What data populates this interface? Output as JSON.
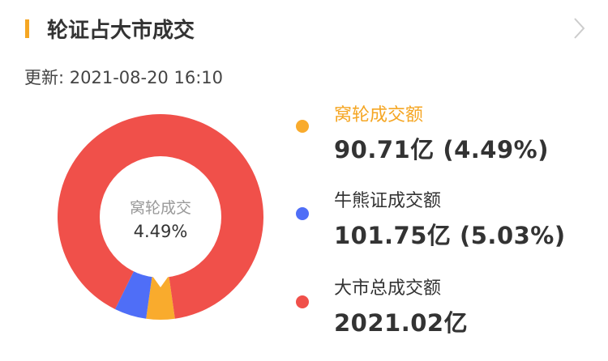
{
  "header": {
    "title": "轮证占大市成交",
    "chevron_icon": "chevron-right-icon",
    "update_text": "更新: 2021-08-20 16:10"
  },
  "colors": {
    "accent": "#f5a623",
    "warrant": "#f9ab2d",
    "cbbc": "#4f6ef7",
    "market": "#f0504a"
  },
  "chart_data": {
    "type": "pie",
    "donut": true,
    "center_label": "窝轮成交",
    "center_value": "4.49%",
    "series": [
      {
        "name": "窝轮成交额",
        "value": 90.71,
        "percent": 4.49,
        "display": "90.71亿 (4.49%)",
        "color": "#f9ab2d"
      },
      {
        "name": "牛熊证成交额",
        "value": 101.75,
        "percent": 5.03,
        "display": "101.75亿 (5.03%)",
        "color": "#4f6ef7"
      },
      {
        "name": "大市总成交额",
        "value": 2021.02,
        "display": "2021.02亿",
        "color": "#f0504a"
      }
    ]
  }
}
